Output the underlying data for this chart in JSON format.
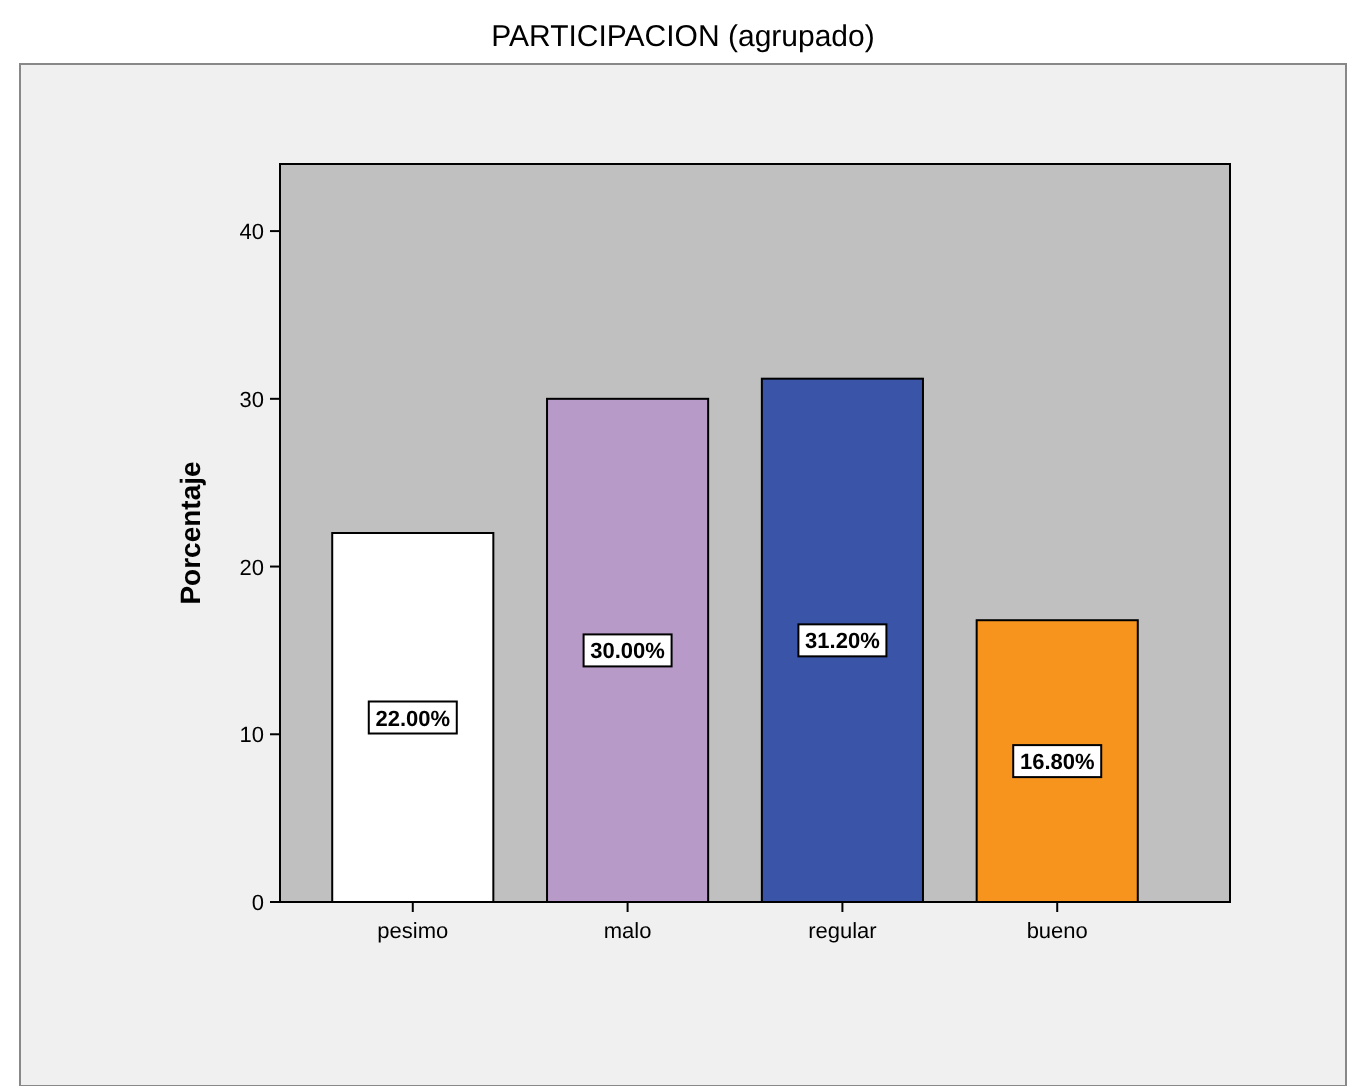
{
  "chart_data": {
    "type": "bar",
    "title": "PARTICIPACION (agrupado)",
    "ylabel": "Porcentaje",
    "categories": [
      "pesimo",
      "malo",
      "regular",
      "bueno"
    ],
    "values": [
      22.0,
      30.0,
      31.2,
      16.8
    ],
    "colors": [
      "#ffffff",
      "#b89ac8",
      "#3a55a8",
      "#f7941d"
    ],
    "value_labels": [
      "22.00%",
      "30.00%",
      "31.20%",
      "16.80%"
    ],
    "ylim": [
      0,
      44
    ],
    "yticks": [
      0,
      10,
      20,
      30,
      40
    ],
    "grid": false
  }
}
